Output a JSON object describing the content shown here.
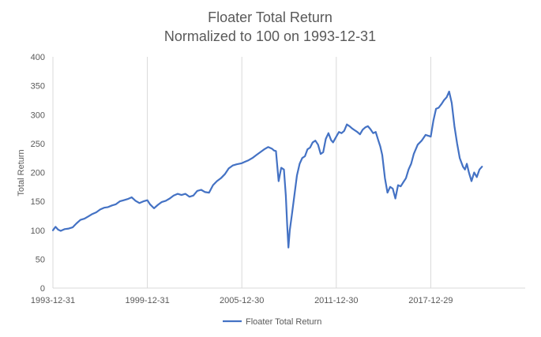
{
  "chart_data": {
    "type": "line",
    "title": "Floater Total Return",
    "subtitle": "Normalized to 100 on 1993-12-31",
    "xlabel": "",
    "ylabel": "Total Return",
    "ylim": [
      0,
      400
    ],
    "y_ticks": [
      0,
      50,
      100,
      150,
      200,
      250,
      300,
      350,
      400
    ],
    "x_tick_labels": [
      "1993-12-31",
      "1999-12-31",
      "2005-12-30",
      "2011-12-30",
      "2017-12-29"
    ],
    "x_tick_dates": [
      "1993-12-31",
      "1999-12-31",
      "2005-12-30",
      "2011-12-30",
      "2017-12-29"
    ],
    "x_range": [
      "1993-12-31",
      "2023-12-29"
    ],
    "grid": "vertical",
    "legend_position": "bottom",
    "color": "#4472C4",
    "series": [
      {
        "name": "Floater Total Return",
        "x": [
          "1993-12-31",
          "1994-03-01",
          "1994-05-01",
          "1994-07-01",
          "1994-10-01",
          "1995-01-01",
          "1995-04-01",
          "1995-07-01",
          "1995-10-01",
          "1996-01-01",
          "1996-04-01",
          "1996-07-01",
          "1996-10-01",
          "1997-01-01",
          "1997-04-01",
          "1997-07-01",
          "1997-10-01",
          "1998-01-01",
          "1998-04-01",
          "1998-07-01",
          "1998-10-01",
          "1999-01-01",
          "1999-04-01",
          "1999-07-01",
          "1999-10-01",
          "1999-12-31",
          "2000-03-01",
          "2000-06-01",
          "2000-09-01",
          "2000-12-01",
          "2001-03-01",
          "2001-06-01",
          "2001-09-01",
          "2001-12-01",
          "2002-03-01",
          "2002-06-01",
          "2002-09-01",
          "2002-12-01",
          "2003-03-01",
          "2003-06-01",
          "2003-09-01",
          "2003-12-01",
          "2004-03-01",
          "2004-06-01",
          "2004-09-01",
          "2004-12-01",
          "2005-03-01",
          "2005-06-01",
          "2005-09-01",
          "2005-12-30",
          "2006-03-01",
          "2006-06-01",
          "2006-09-01",
          "2006-12-01",
          "2007-03-01",
          "2007-06-01",
          "2007-09-01",
          "2007-12-01",
          "2008-01-15",
          "2008-03-01",
          "2008-05-01",
          "2008-07-01",
          "2008-09-01",
          "2008-10-15",
          "2008-11-15",
          "2008-12-15",
          "2009-01-15",
          "2009-03-01",
          "2009-05-01",
          "2009-07-01",
          "2009-09-01",
          "2009-11-01",
          "2010-01-01",
          "2010-03-01",
          "2010-05-01",
          "2010-07-01",
          "2010-09-01",
          "2010-11-01",
          "2011-01-01",
          "2011-03-01",
          "2011-05-01",
          "2011-07-01",
          "2011-09-01",
          "2011-10-15",
          "2011-12-30",
          "2012-03-01",
          "2012-05-01",
          "2012-07-01",
          "2012-09-01",
          "2012-11-01",
          "2013-01-01",
          "2013-03-01",
          "2013-05-01",
          "2013-07-01",
          "2013-09-01",
          "2013-11-01",
          "2014-01-01",
          "2014-03-01",
          "2014-05-01",
          "2014-07-01",
          "2014-09-01",
          "2014-10-15",
          "2014-12-01",
          "2015-02-01",
          "2015-04-01",
          "2015-06-01",
          "2015-08-01",
          "2015-10-01",
          "2015-12-01",
          "2016-02-01",
          "2016-04-01",
          "2016-06-01",
          "2016-08-01",
          "2016-10-01",
          "2016-12-01",
          "2017-03-01",
          "2017-06-01",
          "2017-09-01",
          "2017-12-29",
          "2018-03-01",
          "2018-05-01",
          "2018-07-01",
          "2018-09-01",
          "2018-11-01",
          "2019-01-01",
          "2019-03-01",
          "2019-05-01",
          "2019-07-01",
          "2019-09-01",
          "2019-11-01",
          "2020-01-15",
          "2020-03-01",
          "2020-04-15",
          "2020-06-01",
          "2020-08-01",
          "2020-10-01",
          "2020-12-01",
          "2021-02-01",
          "2021-04-01"
        ],
        "values": [
          100,
          106,
          101,
          99,
          102,
          103,
          105,
          112,
          118,
          120,
          124,
          128,
          131,
          136,
          139,
          140,
          143,
          145,
          150,
          152,
          154,
          157,
          151,
          147,
          150,
          152,
          145,
          138,
          144,
          149,
          151,
          155,
          160,
          163,
          161,
          163,
          158,
          160,
          168,
          170,
          166,
          165,
          178,
          185,
          190,
          197,
          207,
          212,
          214,
          216,
          218,
          221,
          225,
          230,
          235,
          240,
          244,
          241,
          238,
          237,
          185,
          208,
          205,
          160,
          110,
          70,
          100,
          125,
          160,
          195,
          215,
          225,
          228,
          240,
          243,
          252,
          255,
          248,
          232,
          235,
          258,
          268,
          256,
          252,
          262,
          270,
          268,
          272,
          283,
          280,
          276,
          273,
          270,
          266,
          274,
          278,
          280,
          275,
          268,
          270,
          255,
          245,
          230,
          190,
          165,
          175,
          172,
          155,
          178,
          176,
          183,
          190,
          205,
          215,
          232,
          248,
          255,
          265,
          262,
          290,
          310,
          312,
          318,
          325,
          330,
          340,
          320,
          280,
          250,
          225,
          210,
          205,
          215,
          200,
          185,
          200,
          192,
          205,
          210
        ]
      }
    ]
  }
}
